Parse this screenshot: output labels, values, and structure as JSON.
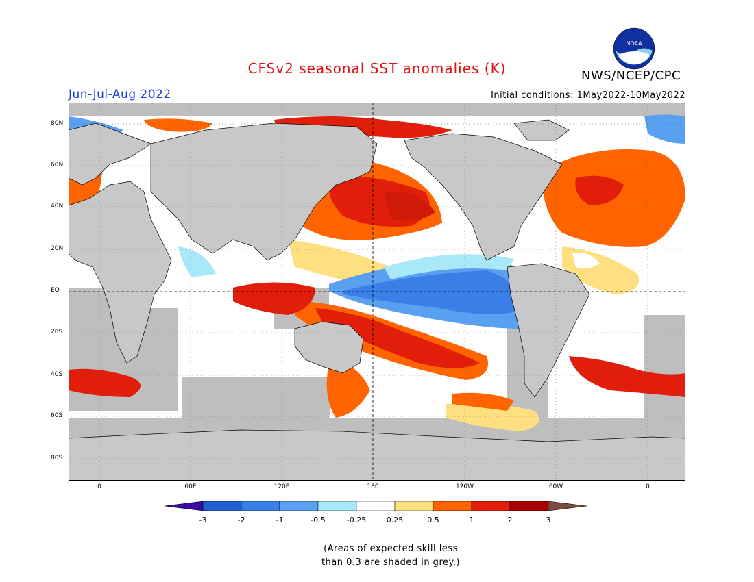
{
  "header": {
    "title": "CFSv2 seasonal SST anomalies (K)",
    "period": "Jun-Jul-Aug 2022",
    "agency": "NWS/NCEP/CPC",
    "initial_conditions": "Initial conditions: 1May2022-10May2022",
    "logo_text": "NOAA"
  },
  "map": {
    "projection": "equirectangular",
    "lon_axis_labels": [
      "0",
      "60E",
      "120E",
      "180",
      "120W",
      "60W",
      "0"
    ],
    "lat_axis_labels": [
      "80N",
      "60N",
      "40N",
      "20N",
      "EQ",
      "20S",
      "40S",
      "60S",
      "80S"
    ],
    "land_color": "#c8c8c8",
    "mask_color": "#bebebe"
  },
  "legend": {
    "ticks": [
      "-3",
      "-2",
      "-1",
      "-0.5",
      "-0.25",
      "0.25",
      "0.5",
      "1",
      "2",
      "3"
    ],
    "colors": [
      "#3a0aa0",
      "#1f5fd0",
      "#3a7fe8",
      "#5aa0f0",
      "#a8e8f8",
      "#ffffff",
      "#ffe080",
      "#ff6400",
      "#e01e0a",
      "#a80000",
      "#7a4a3a"
    ]
  },
  "note": {
    "line1": "(Areas of expected skill less",
    "line2": "than 0.3 are shaded in grey.)"
  }
}
